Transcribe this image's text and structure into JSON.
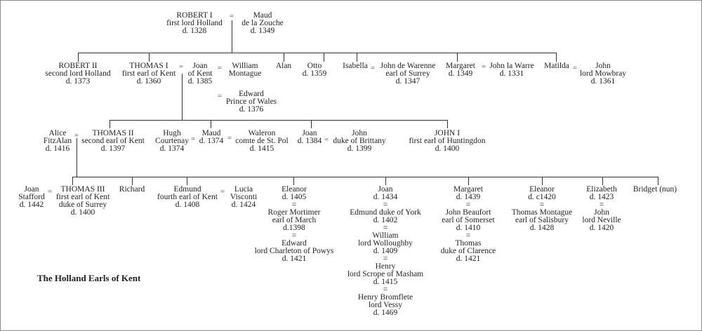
{
  "title": "The Holland Earls of Kent",
  "marriage_symbol": "=",
  "gen0": {
    "robert1": "ROBERT I\nfirst lord Holland\nd. 1328",
    "maud": "Maud\nde la Zouche\nd. 1349"
  },
  "gen1": {
    "robert2": "ROBERT II\nsecond lord Holland\nd. 1373",
    "thomas1": "THOMAS I\nfirst earl of Kent\nd. 1360",
    "joan_kent": "Joan\nof Kent\nd. 1385",
    "william_montague": "William\nMontague",
    "edward_prince": "Edward\nPrince of Wales\nd. 1376",
    "alan": "Alan",
    "otto": "Otto\nd. 1359",
    "isabella": "Isabella",
    "john_warenne": "John de Warenne\nearl of Surrey\nd. 1347",
    "margaret": "Margaret\nd. 1349",
    "john_la_warre": "John la Warre\nd. 1331",
    "matilda": "Matilda",
    "john_mowbray": "John\nlord Mowbray\nd. 1361"
  },
  "gen2": {
    "alice": "Alice\nFitzAlan\nd. 1416",
    "thomas2": "THOMAS II\nsecond earl of Kent\nd. 1397",
    "hugh": "Hugh\nCourtenay\nd. 1374",
    "maud": "Maud\nd. 1374",
    "waleron": "Waleron\ncomte de St. Pol\nd. 1415",
    "joan": "Joan\nd. 1384",
    "john_brittany": "John\nduke of Brittany\nd. 1399",
    "john1": "JOHN I\nfirst earl of Huntingdon\nd. 1400"
  },
  "gen3": {
    "joan_stafford": "Joan\nStafford\nd. 1442",
    "thomas3": "THOMAS III\nfirst earl of Kent\nduke of Surrey\nd. 1400",
    "richard": "Richard",
    "edmund": "Edmund\nfourth earl of Kent\nd. 1408",
    "lucia": "Lucia\nVisconti\nd. 1424",
    "eleanor1": "Eleanor\nd. 1405\n=\nRoger Mortimer\nearl of March\nd.1398\n=\nEdward\nlord Charleton of Powys\nd. 1421",
    "joan": "Joan\nd. 1434\n=\nEdmund duke of York\nd. 1402\n=\nWilliam\nlord Wolloughby\nd. 1409\n=\nHenry\nlord Scrope of Masham\nd. 1415\n=\nHenry Bromflete\nlord Vessy\nd. 1469",
    "margaret": "Margaret\nd. 1439\n=\nJohn Beaufort\nearl of Somerset\nd. 1410\n=\nThomas\nduke of Clarence\nd. 1421",
    "eleanor2": "Eleanor\nd. c1420\n=\nThomas Montague\nearl of Salisbury\nd. 1428",
    "elizabeth": "Elizabeth\nd. 1423\n=\nJohn\nlord Neville\nd. 1420",
    "bridget": "Bridget (nun)"
  }
}
